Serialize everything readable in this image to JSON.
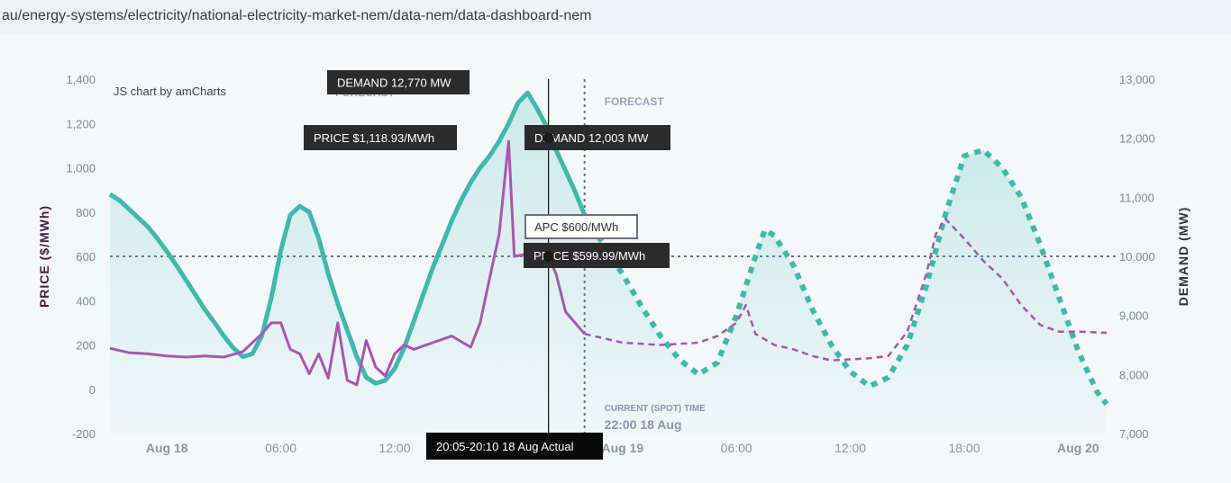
{
  "page": {
    "url": "au/energy-systems/electricity/national-electricity-market-nem/data-nem/data-dashboard-nem"
  },
  "chart_data": {
    "type": "line",
    "credit": "JS chart by amCharts",
    "yleft": {
      "label": "PRICE ($/MWh)",
      "ticks": [
        "1,400",
        "1,200",
        "1,000",
        "800",
        "600",
        "400",
        "200",
        "0",
        "-200"
      ],
      "range": [
        -200,
        1400
      ]
    },
    "yright": {
      "label": "DEMAND (MW)",
      "ticks": [
        "13,000",
        "12,000",
        "11,000",
        "10,000",
        "9,000",
        "8,000",
        "7,000"
      ],
      "range": [
        7000,
        13000
      ]
    },
    "xticks": [
      {
        "label": "Aug 18",
        "hour": 0,
        "bold": true
      },
      {
        "label": "06:00",
        "hour": 6,
        "bold": false
      },
      {
        "label": "12:00",
        "hour": 12,
        "bold": false
      },
      {
        "label": "Aug 19",
        "hour": 24,
        "bold": true
      },
      {
        "label": "06:00",
        "hour": 30,
        "bold": false
      },
      {
        "label": "12:00",
        "hour": 36,
        "bold": false
      },
      {
        "label": "18:00",
        "hour": 42,
        "bold": false
      },
      {
        "label": "Aug 20",
        "hour": 48,
        "bold": true
      }
    ],
    "x_hour_range": [
      -3,
      49.5
    ],
    "current_time": {
      "hour": 22,
      "title": "CURRENT (SPOT) TIME",
      "value": "22:00 18 Aug"
    },
    "forecast_label": "FORECAST",
    "forecast_label_faded": "FORECAST",
    "apc": {
      "value": 600,
      "label": "APC $600/MWh"
    },
    "cursor": {
      "hour": 20.1,
      "time_label": "20:05-20:10 18 Aug Actual",
      "price_label": "PRICE $599.99/MWh",
      "price_value": 599.99,
      "demand_label": "DEMAND 12,003 MW",
      "demand_value": 12003
    },
    "peak_tooltips": {
      "demand_label": "DEMAND 12,770 MW",
      "price_label": "PRICE $1,118.93/MWh"
    },
    "series": [
      {
        "name": "DEMAND",
        "kind": "actual",
        "color": "#3fb8ad",
        "points": [
          [
            -3,
            11050
          ],
          [
            -2.5,
            10950
          ],
          [
            -2,
            10800
          ],
          [
            -1.5,
            10650
          ],
          [
            -1,
            10500
          ],
          [
            -0.5,
            10300
          ],
          [
            0,
            10080
          ],
          [
            0.5,
            9850
          ],
          [
            1,
            9600
          ],
          [
            1.5,
            9350
          ],
          [
            2,
            9100
          ],
          [
            2.5,
            8880
          ],
          [
            3,
            8650
          ],
          [
            3.5,
            8450
          ],
          [
            4,
            8300
          ],
          [
            4.5,
            8350
          ],
          [
            5,
            8650
          ],
          [
            5.5,
            9300
          ],
          [
            6,
            10100
          ],
          [
            6.5,
            10700
          ],
          [
            7,
            10850
          ],
          [
            7.5,
            10750
          ],
          [
            8,
            10300
          ],
          [
            8.5,
            9700
          ],
          [
            9,
            9200
          ],
          [
            9.5,
            8750
          ],
          [
            10,
            8300
          ],
          [
            10.5,
            7950
          ],
          [
            11,
            7850
          ],
          [
            11.5,
            7900
          ],
          [
            12,
            8100
          ],
          [
            12.5,
            8450
          ],
          [
            13,
            8900
          ],
          [
            13.5,
            9350
          ],
          [
            14,
            9800
          ],
          [
            14.5,
            10200
          ],
          [
            15,
            10600
          ],
          [
            15.5,
            10950
          ],
          [
            16,
            11250
          ],
          [
            16.5,
            11500
          ],
          [
            17,
            11700
          ],
          [
            17.5,
            11950
          ],
          [
            18,
            12250
          ],
          [
            18.5,
            12600
          ],
          [
            19,
            12770
          ],
          [
            19.5,
            12500
          ],
          [
            20,
            12200
          ],
          [
            20.1,
            12003
          ],
          [
            20.5,
            11800
          ],
          [
            21,
            11450
          ],
          [
            21.5,
            11100
          ],
          [
            22,
            10700
          ]
        ]
      },
      {
        "name": "DEMAND",
        "kind": "forecast",
        "color": "#3fb8ad",
        "points": [
          [
            22,
            10700
          ],
          [
            23,
            10200
          ],
          [
            24,
            9700
          ],
          [
            25,
            9150
          ],
          [
            26,
            8650
          ],
          [
            27,
            8250
          ],
          [
            28,
            8000
          ],
          [
            29,
            8200
          ],
          [
            30,
            9000
          ],
          [
            31,
            10000
          ],
          [
            31.5,
            10450
          ],
          [
            32,
            10350
          ],
          [
            33,
            9850
          ],
          [
            34,
            9100
          ],
          [
            35,
            8500
          ],
          [
            36,
            8050
          ],
          [
            37,
            7800
          ],
          [
            38,
            7950
          ],
          [
            39,
            8500
          ],
          [
            40,
            9500
          ],
          [
            41,
            10700
          ],
          [
            42,
            11700
          ],
          [
            43,
            11800
          ],
          [
            44,
            11500
          ],
          [
            45,
            11000
          ],
          [
            46,
            10200
          ],
          [
            47,
            9300
          ],
          [
            48,
            8400
          ],
          [
            49,
            7700
          ],
          [
            49.5,
            7500
          ]
        ]
      },
      {
        "name": "PRICE",
        "kind": "actual",
        "color": "#a855b5",
        "points": [
          [
            -3,
            185
          ],
          [
            -2,
            165
          ],
          [
            -1,
            160
          ],
          [
            0,
            150
          ],
          [
            1,
            145
          ],
          [
            2,
            150
          ],
          [
            3,
            145
          ],
          [
            4,
            170
          ],
          [
            4.5,
            210
          ],
          [
            5,
            250
          ],
          [
            5.5,
            300
          ],
          [
            6,
            300
          ],
          [
            6.5,
            180
          ],
          [
            7,
            160
          ],
          [
            7.5,
            70
          ],
          [
            8,
            160
          ],
          [
            8.5,
            50
          ],
          [
            9,
            300
          ],
          [
            9.5,
            40
          ],
          [
            10,
            20
          ],
          [
            10.5,
            220
          ],
          [
            11,
            100
          ],
          [
            11.5,
            60
          ],
          [
            12,
            160
          ],
          [
            12.5,
            200
          ],
          [
            13,
            180
          ],
          [
            14,
            210
          ],
          [
            15,
            240
          ],
          [
            16,
            190
          ],
          [
            16.5,
            300
          ],
          [
            17,
            500
          ],
          [
            17.5,
            700
          ],
          [
            18,
            1118.93
          ],
          [
            18.3,
            600
          ],
          [
            19,
            610
          ],
          [
            19.5,
            600
          ],
          [
            20.1,
            599.99
          ],
          [
            20.5,
            520
          ],
          [
            21,
            350
          ],
          [
            21.5,
            300
          ],
          [
            22,
            250
          ]
        ]
      },
      {
        "name": "PRICE",
        "kind": "forecast",
        "color": "#a855b5",
        "points": [
          [
            22,
            250
          ],
          [
            23,
            230
          ],
          [
            24,
            210
          ],
          [
            26,
            200
          ],
          [
            28,
            210
          ],
          [
            29,
            240
          ],
          [
            30,
            300
          ],
          [
            30.5,
            380
          ],
          [
            31,
            250
          ],
          [
            32,
            200
          ],
          [
            33,
            180
          ],
          [
            34,
            150
          ],
          [
            35,
            130
          ],
          [
            36,
            135
          ],
          [
            37,
            140
          ],
          [
            38,
            150
          ],
          [
            39,
            260
          ],
          [
            40,
            520
          ],
          [
            40.5,
            700
          ],
          [
            41,
            770
          ],
          [
            42,
            680
          ],
          [
            43,
            580
          ],
          [
            44,
            500
          ],
          [
            45,
            380
          ],
          [
            46,
            290
          ],
          [
            47,
            260
          ],
          [
            48,
            260
          ],
          [
            49.5,
            255
          ]
        ]
      }
    ]
  }
}
